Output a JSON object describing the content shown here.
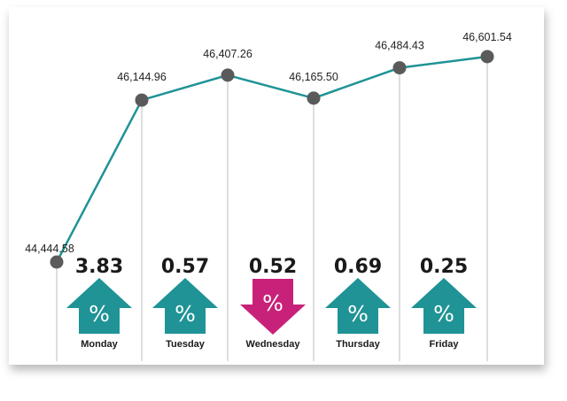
{
  "chart_data": {
    "type": "line",
    "categories": [
      "Monday",
      "Tuesday",
      "Wednesday",
      "Thursday",
      "Friday"
    ],
    "points": [
      {
        "label": "44,444.58",
        "value": 44444.58
      },
      {
        "label": "46,144.96",
        "value": 46144.96
      },
      {
        "label": "46,407.26",
        "value": 46407.26
      },
      {
        "label": "46,165.50",
        "value": 46165.5
      },
      {
        "label": "46,484.43",
        "value": 46484.43
      },
      {
        "label": "46,601.54",
        "value": 46601.54
      }
    ],
    "daily_change": [
      {
        "day": "Monday",
        "value": "3.83",
        "direction": "up"
      },
      {
        "day": "Tuesday",
        "value": "0.57",
        "direction": "up"
      },
      {
        "day": "Wednesday",
        "value": "0.52",
        "direction": "down"
      },
      {
        "day": "Thursday",
        "value": "0.69",
        "direction": "up"
      },
      {
        "day": "Friday",
        "value": "0.25",
        "direction": "up"
      }
    ],
    "percent_symbol": "%",
    "colors": {
      "line": "#1f9396",
      "marker": "#5a5a5a",
      "up": "#1f9396",
      "down": "#c8217a",
      "gridline": "#bdbdbd"
    }
  }
}
